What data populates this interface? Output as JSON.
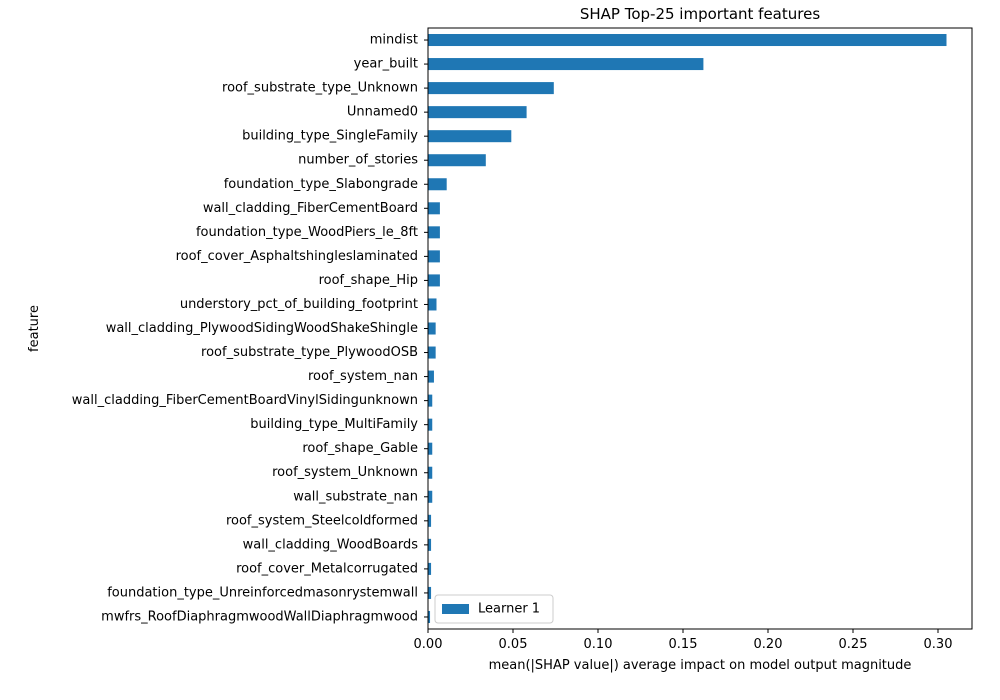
{
  "chart_data": {
    "type": "bar",
    "orientation": "horizontal",
    "title": "SHAP Top-25 important features",
    "xlabel": "mean(|SHAP value|) average impact on model output magnitude",
    "ylabel": "feature",
    "xlim": [
      0,
      0.32
    ],
    "xticks": [
      0.0,
      0.05,
      0.1,
      0.15,
      0.2,
      0.25,
      0.3
    ],
    "xtick_labels": [
      "0.00",
      "0.05",
      "0.10",
      "0.15",
      "0.20",
      "0.25",
      "0.30"
    ],
    "grid": false,
    "legend_position": "lower-left",
    "bar_color": "#1f77b4",
    "categories": [
      "mindist",
      "year_built",
      "roof_substrate_type_Unknown",
      "Unnamed0",
      "building_type_SingleFamily",
      "number_of_stories",
      "foundation_type_Slabongrade",
      "wall_cladding_FiberCementBoard",
      "foundation_type_WoodPiers_le_8ft",
      "roof_cover_Asphaltshingleslaminated",
      "roof_shape_Hip",
      "understory_pct_of_building_footprint",
      "wall_cladding_PlywoodSidingWoodShakeShingle",
      "roof_substrate_type_PlywoodOSB",
      "roof_system_nan",
      "wall_cladding_FiberCementBoardVinylSidingunknown",
      "building_type_MultiFamily",
      "roof_shape_Gable",
      "roof_system_Unknown",
      "wall_substrate_nan",
      "roof_system_Steelcoldformed",
      "wall_cladding_WoodBoards",
      "roof_cover_Metalcorrugated",
      "foundation_type_Unreinforcedmasonrystemwall",
      "mwfrs_RoofDiaphragmwoodWallDiaphragmwood"
    ],
    "series": [
      {
        "name": "Learner 1",
        "values": [
          0.305,
          0.162,
          0.074,
          0.058,
          0.049,
          0.034,
          0.011,
          0.007,
          0.007,
          0.007,
          0.007,
          0.005,
          0.0045,
          0.0045,
          0.0035,
          0.0025,
          0.0025,
          0.0025,
          0.0025,
          0.0025,
          0.0018,
          0.0018,
          0.0018,
          0.0018,
          0.0012
        ]
      }
    ]
  }
}
